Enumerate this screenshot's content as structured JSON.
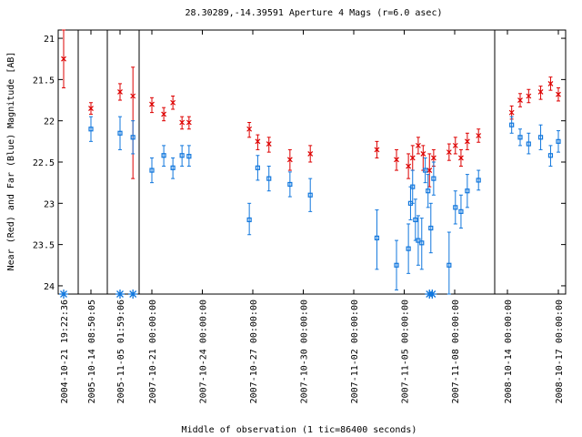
{
  "chart_data": {
    "type": "scatter",
    "title": "28.30289,-14.39591   Aperture 4 Mags (r=6.0 asec)",
    "xlabel": "Middle of observation (1 tic=86400 seconds)",
    "ylabel": "Near (Red) and Far (Blue) Magnitude [AB]",
    "y_inverted": true,
    "ylim": [
      24.1,
      20.9
    ],
    "y_ticks": [
      {
        "value": 21,
        "label": "21"
      },
      {
        "value": 21.5,
        "label": "21.5"
      },
      {
        "value": 22,
        "label": "22"
      },
      {
        "value": 22.5,
        "label": "22.5"
      },
      {
        "value": 23,
        "label": "23"
      },
      {
        "value": 23.5,
        "label": "23.5"
      },
      {
        "value": 24,
        "label": "24"
      }
    ],
    "x_segments": [
      {
        "tick": "2004-10-21 19:22:36"
      },
      {
        "tick": "2005-10-14 08:50:05"
      },
      {
        "tick": "2005-11-05 01:59:06"
      },
      {
        "tick": "2007-10-21 00:00:00",
        "more_ticks": [
          "2007-10-24 00:00:00",
          "2007-10-27 00:00:00",
          "2007-10-30 00:00:00",
          "2007-11-02 00:00:00",
          "2007-11-05 00:00:00",
          "2007-11-08 00:00:00"
        ]
      },
      {
        "tick": "2008-10-14 00:00:00",
        "more_ticks": [
          "2008-10-17 00:00:00"
        ]
      }
    ],
    "x_ticks": [
      {
        "label": "2004-10-21 19:22:36"
      },
      {
        "label": "2005-10-14 08:50:05"
      },
      {
        "label": "2005-11-05 01:59:06"
      },
      {
        "label": "2007-10-21 00:00:00"
      },
      {
        "label": "2007-10-24 00:00:00"
      },
      {
        "label": "2007-10-27 00:00:00"
      },
      {
        "label": "2007-10-30 00:00:00"
      },
      {
        "label": "2007-11-02 00:00:00"
      },
      {
        "label": "2007-11-05 00:00:00"
      },
      {
        "label": "2007-11-08 00:00:00"
      },
      {
        "label": "2008-10-14 00:00:00"
      },
      {
        "label": "2008-10-17 00:00:00"
      }
    ],
    "series": [
      {
        "name": "Near (Red)",
        "color": "#dd0000",
        "marker": "x",
        "points": [
          {
            "x": "2004-10-21 19:22:36",
            "y": 21.25,
            "lo": 20.9,
            "hi": 21.6
          },
          {
            "x": "2005-10-14 08:50:05",
            "y": 21.85,
            "lo": 21.78,
            "hi": 21.92
          },
          {
            "x": "2005-11-05 01:59:06",
            "y": 21.65,
            "lo": 21.55,
            "hi": 21.75
          },
          {
            "x": "2005-11-05 19:00:00",
            "y": 21.7,
            "lo": 21.35,
            "hi": 22.7
          },
          {
            "x": "2007-10-21 00:00:00",
            "y": 21.8,
            "lo": 21.72,
            "hi": 21.9
          },
          {
            "x": "2007-10-21 17:00:00",
            "y": 21.92,
            "lo": 21.84,
            "hi": 22.0
          },
          {
            "x": "2007-10-22 06:00:00",
            "y": 21.78,
            "lo": 21.7,
            "hi": 21.86
          },
          {
            "x": "2007-10-22 19:00:00",
            "y": 22.02,
            "lo": 21.95,
            "hi": 22.1
          },
          {
            "x": "2007-10-23 05:00:00",
            "y": 22.02,
            "lo": 21.95,
            "hi": 22.1
          },
          {
            "x": "2007-10-26 19:00:00",
            "y": 22.1,
            "lo": 22.02,
            "hi": 22.2
          },
          {
            "x": "2007-10-27 07:00:00",
            "y": 22.25,
            "lo": 22.17,
            "hi": 22.35
          },
          {
            "x": "2007-10-27 23:00:00",
            "y": 22.28,
            "lo": 22.2,
            "hi": 22.38
          },
          {
            "x": "2007-10-29 05:00:00",
            "y": 22.47,
            "lo": 22.35,
            "hi": 22.6
          },
          {
            "x": "2007-10-30 10:00:00",
            "y": 22.4,
            "lo": 22.3,
            "hi": 22.5
          },
          {
            "x": "2007-11-03 09:00:00",
            "y": 22.35,
            "lo": 22.25,
            "hi": 22.45
          },
          {
            "x": "2007-11-04 13:00:00",
            "y": 22.47,
            "lo": 22.35,
            "hi": 22.6
          },
          {
            "x": "2007-11-05 06:00:00",
            "y": 22.55,
            "lo": 22.4,
            "hi": 22.7
          },
          {
            "x": "2007-11-05 12:00:00",
            "y": 22.45,
            "lo": 22.3,
            "hi": 22.6
          },
          {
            "x": "2007-11-05 20:00:00",
            "y": 22.3,
            "lo": 22.2,
            "hi": 22.4
          },
          {
            "x": "2007-11-06 03:00:00",
            "y": 22.4,
            "lo": 22.3,
            "hi": 22.6
          },
          {
            "x": "2007-11-06 12:00:00",
            "y": 22.6,
            "lo": 22.4,
            "hi": 22.8
          },
          {
            "x": "2007-11-06 18:00:00",
            "y": 22.45,
            "lo": 22.35,
            "hi": 22.55
          },
          {
            "x": "2007-11-07 16:00:00",
            "y": 22.38,
            "lo": 22.28,
            "hi": 22.48
          },
          {
            "x": "2007-11-08 01:00:00",
            "y": 22.3,
            "lo": 22.2,
            "hi": 22.4
          },
          {
            "x": "2007-11-08 09:00:00",
            "y": 22.45,
            "lo": 22.35,
            "hi": 22.55
          },
          {
            "x": "2007-11-08 18:00:00",
            "y": 22.25,
            "lo": 22.15,
            "hi": 22.35
          },
          {
            "x": "2007-11-09 10:00:00",
            "y": 22.18,
            "lo": 22.1,
            "hi": 22.26
          },
          {
            "x": "2008-10-14 06:00:00",
            "y": 21.9,
            "lo": 21.82,
            "hi": 21.98
          },
          {
            "x": "2008-10-14 18:00:00",
            "y": 21.75,
            "lo": 21.67,
            "hi": 21.83
          },
          {
            "x": "2008-10-15 06:00:00",
            "y": 21.7,
            "lo": 21.62,
            "hi": 21.78
          },
          {
            "x": "2008-10-15 23:00:00",
            "y": 21.65,
            "lo": 21.58,
            "hi": 21.74
          },
          {
            "x": "2008-10-16 13:00:00",
            "y": 21.55,
            "lo": 21.47,
            "hi": 21.63
          },
          {
            "x": "2008-10-17 00:00:00",
            "y": 21.68,
            "lo": 21.6,
            "hi": 21.76
          }
        ]
      },
      {
        "name": "Far (Blue)",
        "color": "#1177dd",
        "marker": "square",
        "points": [
          {
            "x": "2005-10-14 08:50:05",
            "y": 22.1,
            "lo": 21.95,
            "hi": 22.25
          },
          {
            "x": "2005-11-05 01:59:06",
            "y": 22.15,
            "lo": 21.95,
            "hi": 22.35
          },
          {
            "x": "2005-11-05 19:00:00",
            "y": 22.2,
            "lo": 22.0,
            "hi": 22.4
          },
          {
            "x": "2007-10-21 00:00:00",
            "y": 22.6,
            "lo": 22.45,
            "hi": 22.75
          },
          {
            "x": "2007-10-21 17:00:00",
            "y": 22.42,
            "lo": 22.3,
            "hi": 22.55
          },
          {
            "x": "2007-10-22 06:00:00",
            "y": 22.57,
            "lo": 22.45,
            "hi": 22.7
          },
          {
            "x": "2007-10-22 19:00:00",
            "y": 22.42,
            "lo": 22.3,
            "hi": 22.55
          },
          {
            "x": "2007-10-23 05:00:00",
            "y": 22.43,
            "lo": 22.3,
            "hi": 22.55
          },
          {
            "x": "2007-10-26 19:00:00",
            "y": 23.2,
            "lo": 23.0,
            "hi": 23.38
          },
          {
            "x": "2007-10-27 07:00:00",
            "y": 22.57,
            "lo": 22.42,
            "hi": 22.72
          },
          {
            "x": "2007-10-27 23:00:00",
            "y": 22.7,
            "lo": 22.55,
            "hi": 22.85
          },
          {
            "x": "2007-10-29 05:00:00",
            "y": 22.77,
            "lo": 22.62,
            "hi": 22.92
          },
          {
            "x": "2007-10-30 10:00:00",
            "y": 22.9,
            "lo": 22.7,
            "hi": 23.1
          },
          {
            "x": "2007-11-03 09:00:00",
            "y": 23.42,
            "lo": 23.08,
            "hi": 23.8
          },
          {
            "x": "2007-11-04 13:00:00",
            "y": 23.75,
            "lo": 23.45,
            "hi": 24.05
          },
          {
            "x": "2007-11-05 06:00:00",
            "y": 23.55,
            "lo": 23.25,
            "hi": 23.85
          },
          {
            "x": "2007-11-05 09:00:00",
            "y": 23.0,
            "lo": 22.8,
            "hi": 23.2
          },
          {
            "x": "2007-11-05 12:00:00",
            "y": 22.8,
            "lo": 22.6,
            "hi": 23.0
          },
          {
            "x": "2007-11-05 16:00:00",
            "y": 23.2,
            "lo": 22.95,
            "hi": 23.45
          },
          {
            "x": "2007-11-05 20:00:00",
            "y": 23.45,
            "lo": 23.15,
            "hi": 23.75
          },
          {
            "x": "2007-11-06 01:00:00",
            "y": 23.48,
            "lo": 23.18,
            "hi": 23.8
          },
          {
            "x": "2007-11-06 06:00:00",
            "y": 22.6,
            "lo": 22.45,
            "hi": 22.75
          },
          {
            "x": "2007-11-06 10:00:00",
            "y": 22.85,
            "lo": 22.65,
            "hi": 23.05
          },
          {
            "x": "2007-11-06 14:00:00",
            "y": 23.3,
            "lo": 23.0,
            "hi": 23.6
          },
          {
            "x": "2007-11-06 18:00:00",
            "y": 22.7,
            "lo": 22.5,
            "hi": 22.9
          },
          {
            "x": "2007-11-07 16:00:00",
            "y": 23.75,
            "lo": 23.35,
            "hi": 24.1
          },
          {
            "x": "2007-11-08 01:00:00",
            "y": 23.05,
            "lo": 22.85,
            "hi": 23.25
          },
          {
            "x": "2007-11-08 09:00:00",
            "y": 23.1,
            "lo": 22.9,
            "hi": 23.3
          },
          {
            "x": "2007-11-08 18:00:00",
            "y": 22.85,
            "lo": 22.65,
            "hi": 23.05
          },
          {
            "x": "2007-11-09 10:00:00",
            "y": 22.72,
            "lo": 22.6,
            "hi": 22.84
          },
          {
            "x": "2008-10-14 06:00:00",
            "y": 22.05,
            "lo": 21.95,
            "hi": 22.15
          },
          {
            "x": "2008-10-14 18:00:00",
            "y": 22.2,
            "lo": 22.1,
            "hi": 22.3
          },
          {
            "x": "2008-10-15 06:00:00",
            "y": 22.28,
            "lo": 22.15,
            "hi": 22.4
          },
          {
            "x": "2008-10-15 23:00:00",
            "y": 22.2,
            "lo": 22.05,
            "hi": 22.35
          },
          {
            "x": "2008-10-16 13:00:00",
            "y": 22.42,
            "lo": 22.3,
            "hi": 22.55
          },
          {
            "x": "2008-10-17 00:00:00",
            "y": 22.25,
            "lo": 22.12,
            "hi": 22.38
          }
        ]
      }
    ],
    "limit_markers": {
      "color": "#1177dd",
      "marker": "asterisk",
      "x": [
        "2004-10-21 19:22:36",
        "2005-11-05 01:59:06",
        "2005-11-05 19:00:00",
        "2007-11-06 12:00:00",
        "2007-11-06 16:00:00"
      ]
    },
    "grid": false,
    "legend": "none"
  }
}
